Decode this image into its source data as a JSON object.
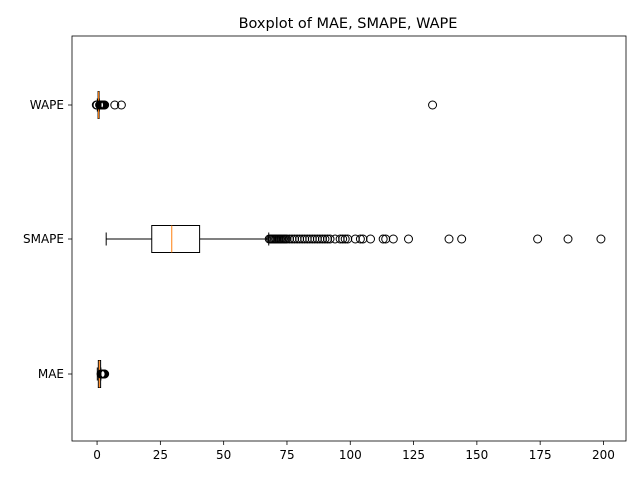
{
  "chart_data": {
    "type": "boxplot",
    "orientation": "horizontal",
    "title": "Boxplot of MAE, SMAPE, WAPE",
    "xlabel": "",
    "ylabel": "",
    "xlim": [
      -9.9,
      208.9
    ],
    "xticks": [
      0,
      25,
      50,
      75,
      100,
      125,
      150,
      175,
      200
    ],
    "xtick_labels": [
      "0",
      "25",
      "50",
      "75",
      "100",
      "125",
      "150",
      "175",
      "200"
    ],
    "grid": false,
    "colors": {
      "box": "#000000",
      "median": "#ff7f0e",
      "axes": "#000000"
    },
    "series": [
      {
        "name": "MAE",
        "whisker_low": 0.1,
        "q1": 0.5,
        "median": 0.9,
        "q3": 1.4,
        "whisker_high": 1.5,
        "outliers": [
          1.6,
          1.7,
          1.8,
          1.9,
          2.0,
          2.1,
          2.2,
          2.3,
          2.4,
          2.6,
          2.8,
          3.0
        ]
      },
      {
        "name": "SMAPE",
        "whisker_low": 3.6,
        "q1": 21.6,
        "median": 29.5,
        "q3": 40.5,
        "whisker_high": 67.8,
        "outliers": [
          68,
          68.5,
          69,
          69.5,
          70,
          70.5,
          71,
          71.5,
          72,
          72.5,
          73,
          73.5,
          74,
          74.5,
          75,
          76,
          77,
          78,
          79,
          80,
          81,
          82,
          83,
          84,
          85,
          86,
          87,
          88,
          89,
          90,
          91,
          92,
          94,
          96,
          97,
          98,
          99,
          102,
          104,
          105,
          108,
          113,
          114,
          117,
          123,
          139,
          144,
          174,
          186,
          199
        ]
      },
      {
        "name": "WAPE",
        "whisker_low": 0.1,
        "q1": 0.4,
        "median": 0.6,
        "q3": 0.8,
        "whisker_high": 0.9,
        "outliers": [
          -0.3,
          0.0,
          1.0,
          1.2,
          1.4,
          1.6,
          1.8,
          2.0,
          2.2,
          2.4,
          2.7,
          3.0,
          7.0,
          9.6,
          132.5
        ]
      }
    ]
  }
}
